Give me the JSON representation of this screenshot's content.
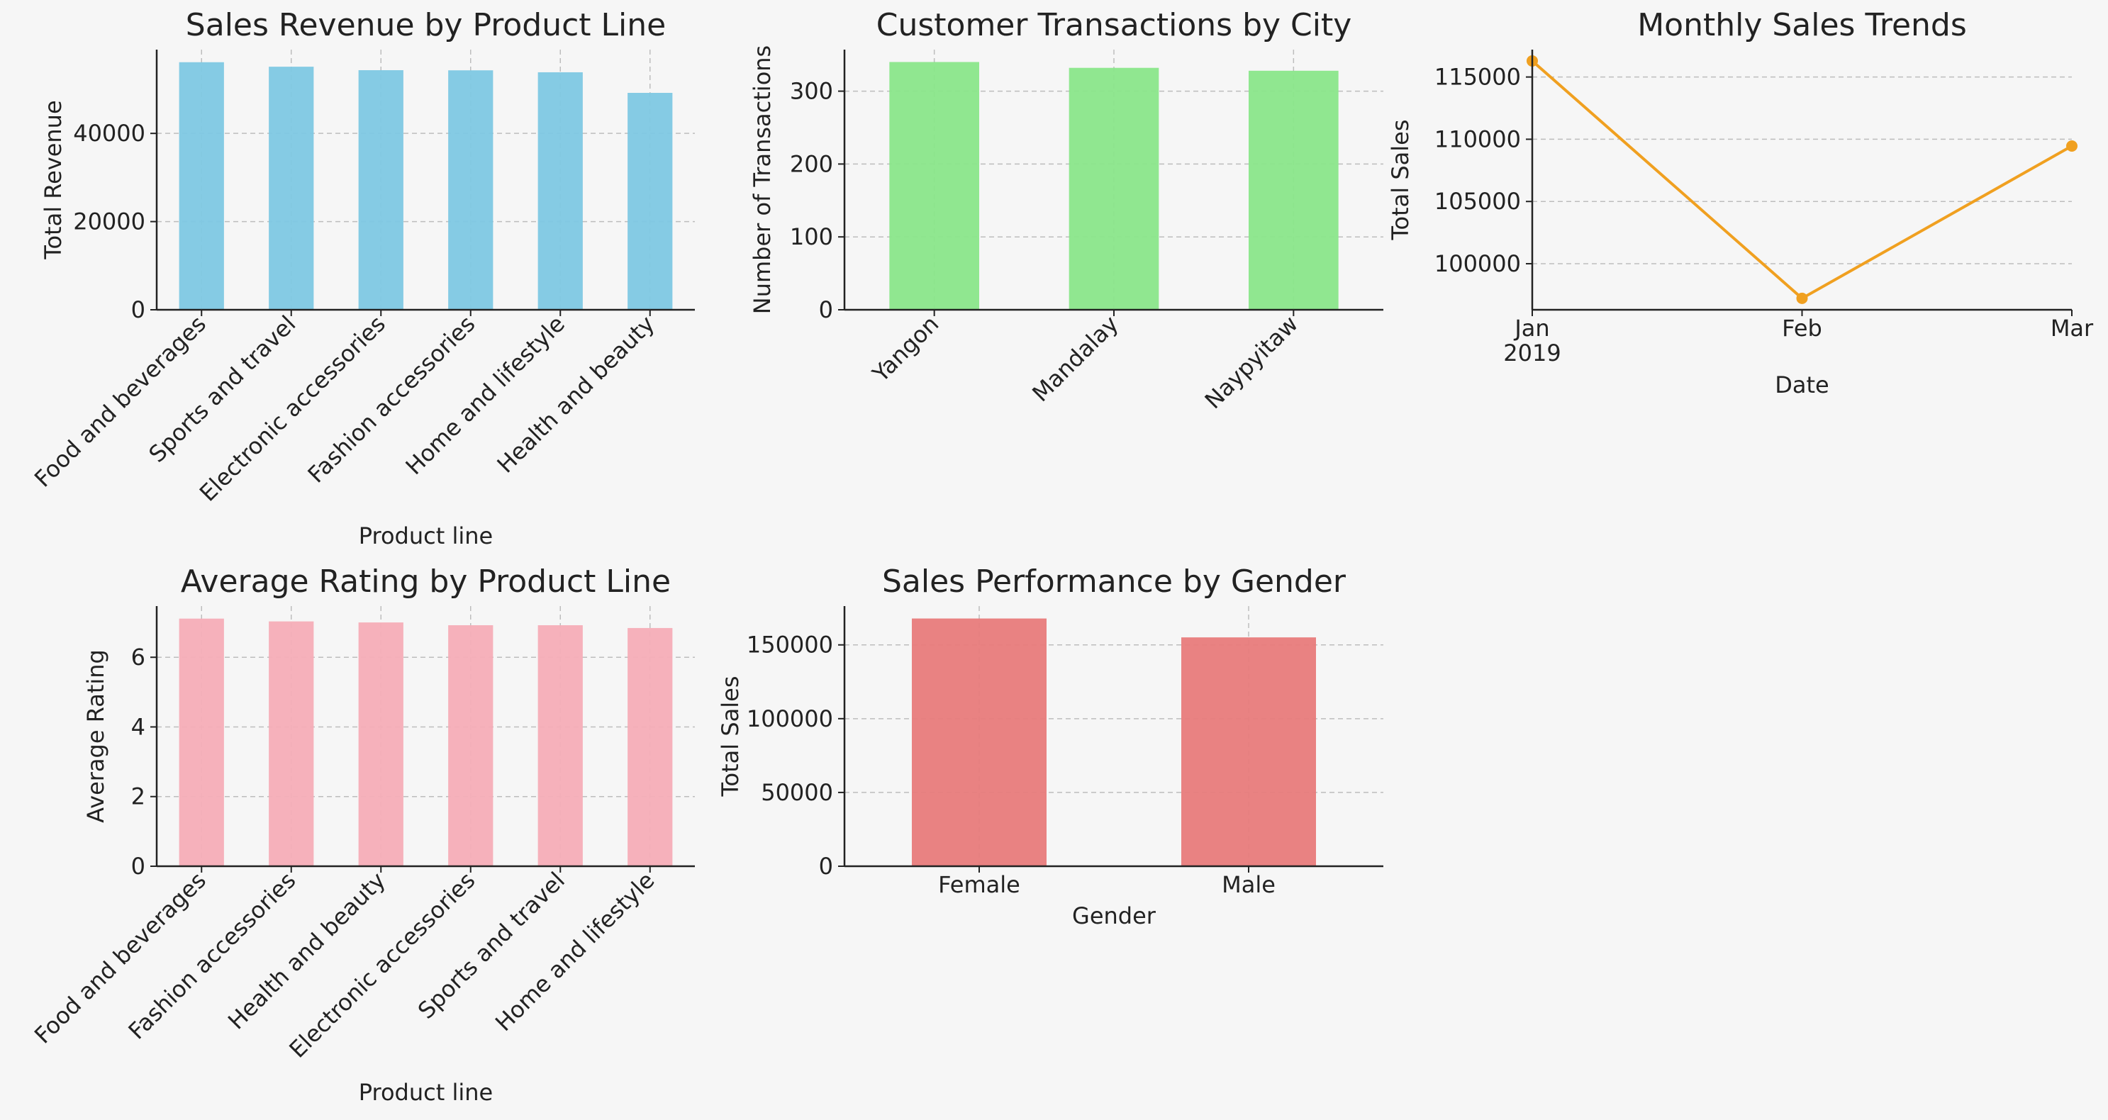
{
  "chart_data": [
    {
      "type": "bar",
      "title": "Sales Revenue by Product Line",
      "xlabel": "Product line",
      "ylabel": "Total Revenue",
      "categories": [
        "Food and beverages",
        "Sports and travel",
        "Electronic accessories",
        "Fashion accessories",
        "Home and lifestyle",
        "Health and beauty"
      ],
      "values": [
        56145,
        55123,
        54338,
        54306,
        53862,
        49194
      ],
      "ylim": [
        0,
        59000
      ],
      "yticks": [
        0,
        20000,
        40000
      ],
      "grid": true,
      "color": "#7ec8e3",
      "x_tick_rotation": 45
    },
    {
      "type": "bar",
      "title": "Customer Transactions by City",
      "xlabel": "",
      "ylabel": "Number of Transactions",
      "categories": [
        "Yangon",
        "Mandalay",
        "Naypyitaw"
      ],
      "values": [
        340,
        332,
        328
      ],
      "ylim": [
        0,
        357
      ],
      "yticks": [
        0,
        100,
        200,
        300
      ],
      "grid": true,
      "color": "#8ae68a",
      "x_tick_rotation": 45
    },
    {
      "type": "line",
      "title": "Monthly Sales Trends",
      "xlabel": "Date",
      "ylabel": "Total Sales",
      "x": [
        "Jan",
        "Feb",
        "Mar"
      ],
      "x_sublabel": "2019",
      "values": [
        116292,
        97219,
        109456
      ],
      "ylim": [
        96300,
        117200
      ],
      "yticks": [
        100000,
        105000,
        110000,
        115000
      ],
      "grid": true,
      "color": "#f0a020"
    },
    {
      "type": "bar",
      "title": "Average Rating by Product Line",
      "xlabel": "Product line",
      "ylabel": "Average Rating",
      "categories": [
        "Food and beverages",
        "Fashion accessories",
        "Health and beauty",
        "Electronic accessories",
        "Sports and travel",
        "Home and lifestyle"
      ],
      "values": [
        7.11,
        7.03,
        7.0,
        6.92,
        6.92,
        6.84
      ],
      "ylim": [
        0,
        7.47
      ],
      "yticks": [
        0,
        2,
        4,
        6
      ],
      "grid": true,
      "color": "#f6adb7",
      "x_tick_rotation": 45
    },
    {
      "type": "bar",
      "title": "Sales Performance by Gender",
      "xlabel": "Gender",
      "ylabel": "Total Sales",
      "categories": [
        "Female",
        "Male"
      ],
      "values": [
        167882,
        155084
      ],
      "ylim": [
        0,
        176300
      ],
      "yticks": [
        0,
        50000,
        100000,
        150000
      ],
      "grid": true,
      "color": "#e87b7b",
      "x_tick_rotation": 0
    }
  ]
}
